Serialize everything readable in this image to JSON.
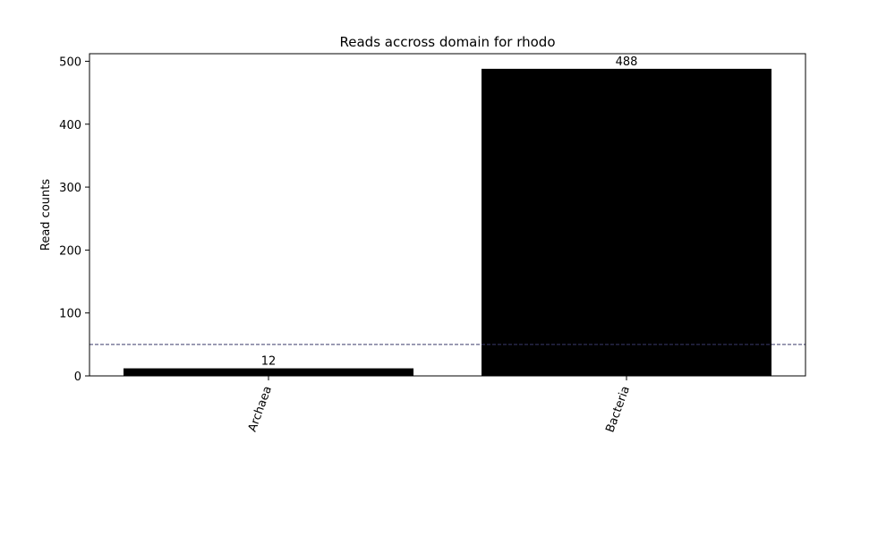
{
  "chart_data": {
    "type": "bar",
    "title": "Reads accross domain for rhodo",
    "xlabel": "",
    "ylabel": "Read counts",
    "categories": [
      "Archaea",
      "Bacteria"
    ],
    "values": [
      12,
      488
    ],
    "bar_labels": [
      "12",
      "488"
    ],
    "ylim": [
      0,
      512
    ],
    "yticks": [
      0,
      100,
      200,
      300,
      400,
      500
    ],
    "ytick_labels": [
      "0",
      "100",
      "200",
      "300",
      "400",
      "500"
    ],
    "xtick_rotation_deg": -70,
    "threshold": 50,
    "grid": false,
    "legend": "none",
    "bar_color": "#000000",
    "threshold_color": "#3b3b6b"
  }
}
